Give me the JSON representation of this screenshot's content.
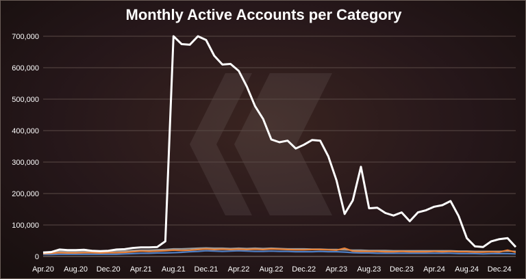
{
  "chart_data": {
    "type": "line",
    "title": "Monthly Active Accounts per Category",
    "xlabel": "",
    "ylabel": "",
    "ylim": [
      0,
      700000
    ],
    "yticks": [
      0,
      100000,
      200000,
      300000,
      400000,
      500000,
      600000,
      700000
    ],
    "ytick_labels": [
      "0",
      "100,000",
      "200,000",
      "300,000",
      "400,000",
      "500,000",
      "600,000",
      "700,000"
    ],
    "x_tick_labels": [
      "Apr.20",
      "Aug.20",
      "Dec.20",
      "Apr.21",
      "Aug.21",
      "Dec.21",
      "Apr.22",
      "Aug.22",
      "Dec.22",
      "Apr.23",
      "Aug.23",
      "Dec.23",
      "Apr.24",
      "Aug.24",
      "Dec.24"
    ],
    "x": [
      "Apr.20",
      "May.20",
      "Jun.20",
      "Jul.20",
      "Aug.20",
      "Sep.20",
      "Oct.20",
      "Nov.20",
      "Dec.20",
      "Jan.21",
      "Feb.21",
      "Mar.21",
      "Apr.21",
      "May.21",
      "Jun.21",
      "Jul.21",
      "Aug.21",
      "Sep.21",
      "Oct.21",
      "Nov.21",
      "Dec.21",
      "Jan.22",
      "Feb.22",
      "Mar.22",
      "Apr.22",
      "May.22",
      "Jun.22",
      "Jul.22",
      "Aug.22",
      "Sep.22",
      "Oct.22",
      "Nov.22",
      "Dec.22",
      "Jan.23",
      "Feb.23",
      "Mar.23",
      "Apr.23",
      "May.23",
      "Jun.23",
      "Jul.23",
      "Aug.23",
      "Sep.23",
      "Oct.23",
      "Nov.23",
      "Dec.23",
      "Jan.24",
      "Feb.24",
      "Mar.24",
      "Apr.24",
      "May.24",
      "Jun.24",
      "Jul.24",
      "Aug.24",
      "Sep.24",
      "Oct.24",
      "Nov.24",
      "Dec.24",
      "Jan.25",
      "Feb.25"
    ],
    "grid": true,
    "legend": "none",
    "series": [
      {
        "color": "#ffffff",
        "values": [
          12000,
          14000,
          22000,
          20000,
          20000,
          21000,
          18000,
          17000,
          18000,
          22000,
          23000,
          27000,
          29000,
          29000,
          30000,
          48000,
          700000,
          675000,
          673000,
          700000,
          688000,
          638000,
          610000,
          612000,
          590000,
          540000,
          478000,
          437000,
          372000,
          363000,
          368000,
          343000,
          355000,
          370000,
          368000,
          318000,
          242000,
          135000,
          178000,
          285000,
          153000,
          155000,
          138000,
          130000,
          140000,
          112000,
          140000,
          147000,
          158000,
          163000,
          176000,
          128000,
          58000,
          32000,
          30000,
          48000,
          55000,
          58000,
          30000
        ]
      },
      {
        "color": "#e8823a",
        "values": [
          9000,
          10000,
          12000,
          11000,
          11000,
          12000,
          12000,
          11000,
          12000,
          12000,
          13000,
          15000,
          17000,
          16000,
          17000,
          18000,
          20000,
          19000,
          20000,
          22000,
          24000,
          22000,
          23000,
          22000,
          23000,
          22000,
          23000,
          22000,
          24000,
          23000,
          22000,
          21000,
          21000,
          22000,
          22000,
          21000,
          20000,
          26000,
          17000,
          16000,
          16000,
          16000,
          15000,
          15000,
          16000,
          15000,
          15000,
          15000,
          16000,
          15000,
          16000,
          15000,
          15000,
          14000,
          14000,
          15000,
          14000,
          20000,
          13000
        ]
      },
      {
        "color": "#4f7fc4",
        "values": [
          6000,
          6000,
          7000,
          7000,
          7000,
          7000,
          7000,
          7000,
          7000,
          7000,
          8000,
          9000,
          10000,
          10000,
          11000,
          11000,
          12000,
          13000,
          15000,
          16000,
          18000,
          17000,
          16000,
          17000,
          18000,
          17000,
          16000,
          16000,
          17000,
          16000,
          16000,
          15000,
          15000,
          15000,
          16000,
          15000,
          15000,
          14000,
          12000,
          11000,
          11000,
          10000,
          10000,
          10000,
          10000,
          10000,
          10000,
          10000,
          10000,
          10000,
          10000,
          9000,
          9000,
          9000,
          8000,
          9000,
          9000,
          9000,
          8000
        ]
      },
      {
        "color": "#9c9c9c",
        "values": [
          14000,
          15000,
          16000,
          15000,
          15000,
          16000,
          16000,
          15000,
          16000,
          17000,
          17000,
          19000,
          20000,
          20000,
          21000,
          22000,
          24000,
          24000,
          25000,
          26000,
          27000,
          26000,
          26000,
          25000,
          26000,
          25000,
          26000,
          25000,
          26000,
          25000,
          24000,
          24000,
          24000,
          23000,
          23000,
          22000,
          22000,
          21000,
          20000,
          20000,
          19000,
          19000,
          19000,
          18000,
          18000,
          18000,
          18000,
          18000,
          18000,
          18000,
          18000,
          17000,
          17000,
          16000,
          16000,
          16000,
          16000,
          17000,
          16000
        ]
      }
    ]
  }
}
